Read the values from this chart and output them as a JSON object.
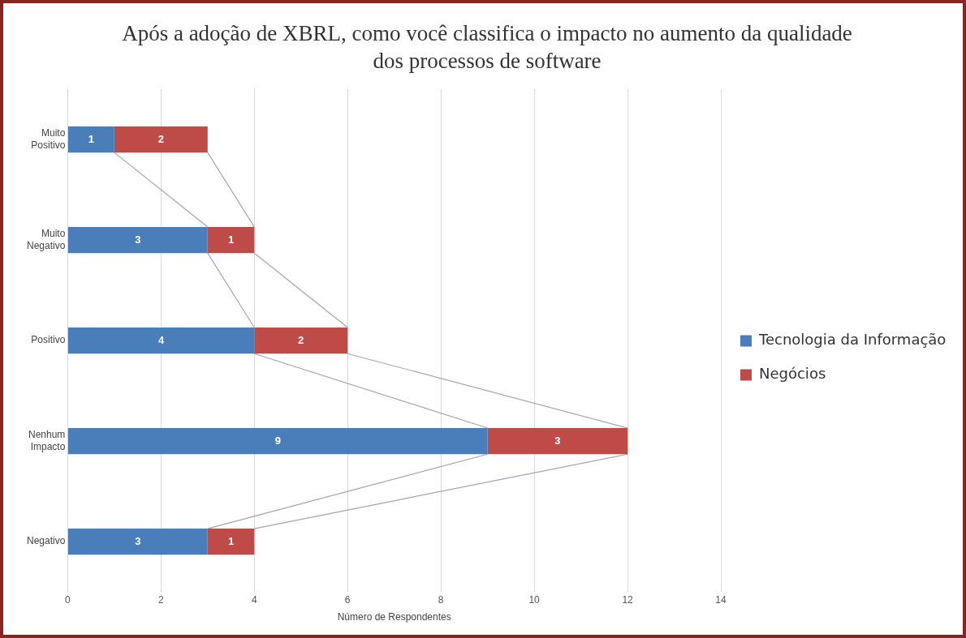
{
  "chart_data": {
    "type": "bar",
    "orientation": "horizontal",
    "stacked": true,
    "title": "Após a adoção de XBRL, como você classifica o impacto no aumento da qualidade dos processos de software",
    "xlabel": "Número de Respondentes",
    "categories": [
      "Muito Positivo",
      "Muito Negativo",
      "Positivo",
      "Nenhum Impacto",
      "Negativo"
    ],
    "series": [
      {
        "name": "Tecnologia da Informação",
        "color": "#4a7ebb",
        "values": [
          1,
          3,
          4,
          9,
          3
        ]
      },
      {
        "name": "Negócios",
        "color": "#be4b48",
        "values": [
          2,
          1,
          2,
          3,
          1
        ]
      }
    ],
    "xlim": [
      0,
      14
    ],
    "xticks": [
      0,
      2,
      4,
      6,
      8,
      10,
      12,
      14
    ],
    "grid": "x",
    "legend": "right",
    "data_labels": true
  }
}
